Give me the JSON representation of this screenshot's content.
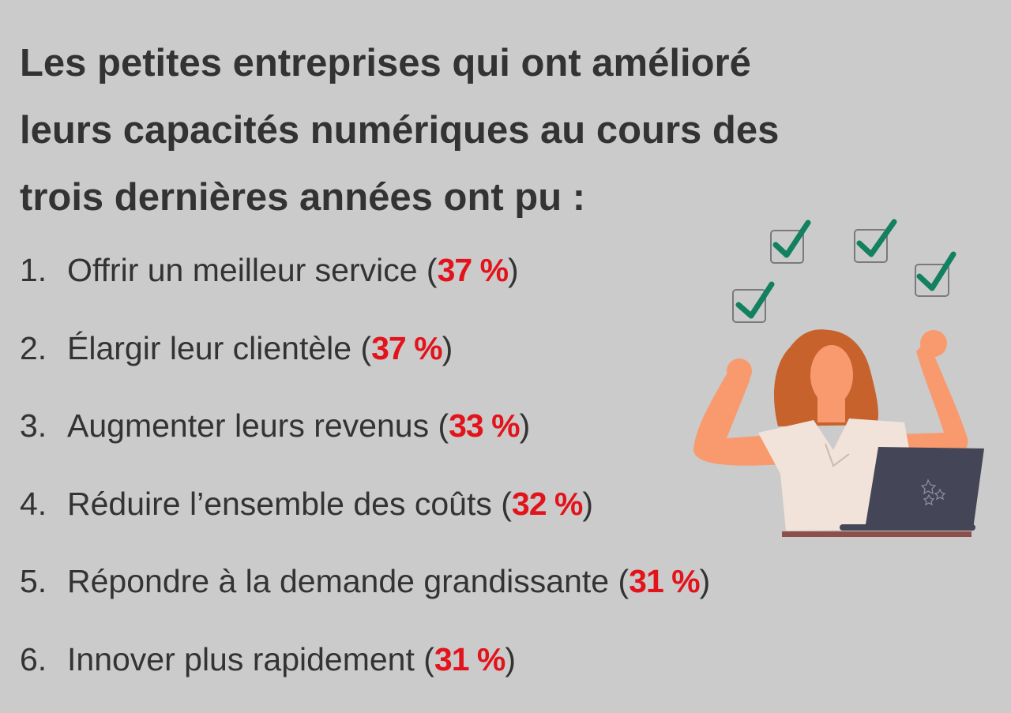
{
  "title_lines": [
    "Les petites entreprises qui ont amélioré",
    "leurs capacités numériques au cours des",
    "trois dernières années ont pu :"
  ],
  "items": [
    {
      "num": "1.",
      "text": "Offrir un meilleur service (",
      "pct": "37 %",
      "close": ")"
    },
    {
      "num": "2.",
      "text": "Élargir leur clientèle (",
      "pct": "37 %",
      "close": ")"
    },
    {
      "num": "3.",
      "text": "Augmenter leurs revenus (",
      "pct": "33 %",
      "close": ")"
    },
    {
      "num": "4.",
      "text": "Réduire l’ensemble des coûts (",
      "pct": "32 %",
      "close": ")"
    },
    {
      "num": "5.",
      "text": "Répondre à la demande grandissante (",
      "pct": "31 %",
      "close": ")"
    },
    {
      "num": "6.",
      "text": "Innover plus rapidement (",
      "pct": "31 %",
      "close": ")"
    }
  ],
  "colors": {
    "background": "#cbcbcb",
    "text": "#333333",
    "accent": "#e3131b",
    "check": "#13805f"
  }
}
